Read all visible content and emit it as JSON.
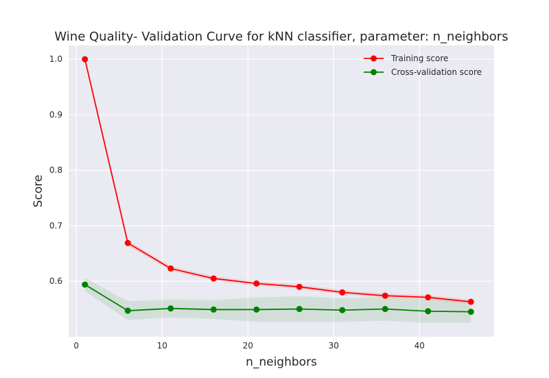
{
  "chart_data": {
    "type": "line",
    "title": "Wine Quality- Validation Curve for kNN classifier, parameter: n_neighbors",
    "xlabel": "n_neighbors",
    "ylabel": "Score",
    "xlim": [
      -0.9,
      48.7
    ],
    "ylim": [
      0.5,
      1.025
    ],
    "x_ticks": [
      0,
      10,
      20,
      30,
      40
    ],
    "y_ticks": [
      0.6,
      0.7,
      0.8,
      0.9,
      1.0
    ],
    "x_tick_labels": [
      "0",
      "10",
      "20",
      "30",
      "40"
    ],
    "y_tick_labels": [
      "0.6",
      "0.7",
      "0.8",
      "0.9",
      "1.0"
    ],
    "grid": true,
    "legend_position": "top-right",
    "x": [
      1,
      6,
      11,
      16,
      21,
      26,
      31,
      36,
      41,
      46
    ],
    "series": [
      {
        "name": "Training score",
        "color": "#ff0000",
        "band_color": "#ff0000",
        "values": [
          1.0,
          0.669,
          0.623,
          0.605,
          0.596,
          0.59,
          0.58,
          0.574,
          0.571,
          0.563
        ],
        "band_lower": [
          1.0,
          0.664,
          0.619,
          0.601,
          0.592,
          0.586,
          0.576,
          0.57,
          0.567,
          0.559
        ],
        "band_upper": [
          1.0,
          0.674,
          0.627,
          0.609,
          0.6,
          0.594,
          0.584,
          0.578,
          0.575,
          0.567
        ]
      },
      {
        "name": "Cross-validation score",
        "color": "#008000",
        "band_color": "#008000",
        "values": [
          0.594,
          0.547,
          0.551,
          0.549,
          0.549,
          0.55,
          0.548,
          0.55,
          0.546,
          0.545
        ],
        "band_lower": [
          0.582,
          0.53,
          0.535,
          0.532,
          0.527,
          0.527,
          0.527,
          0.529,
          0.525,
          0.525
        ],
        "band_upper": [
          0.606,
          0.564,
          0.567,
          0.566,
          0.571,
          0.573,
          0.569,
          0.571,
          0.567,
          0.565
        ]
      }
    ]
  }
}
